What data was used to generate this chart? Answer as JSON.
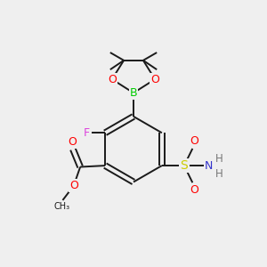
{
  "bg_color": "#efefef",
  "bond_color": "#1a1a1a",
  "atom_colors": {
    "O": "#ff0000",
    "B": "#00cc00",
    "F": "#dd44dd",
    "S": "#cccc00",
    "N": "#3333cc",
    "C": "#1a1a1a",
    "H": "#777777"
  },
  "figsize": [
    3.0,
    3.0
  ],
  "dpi": 100
}
